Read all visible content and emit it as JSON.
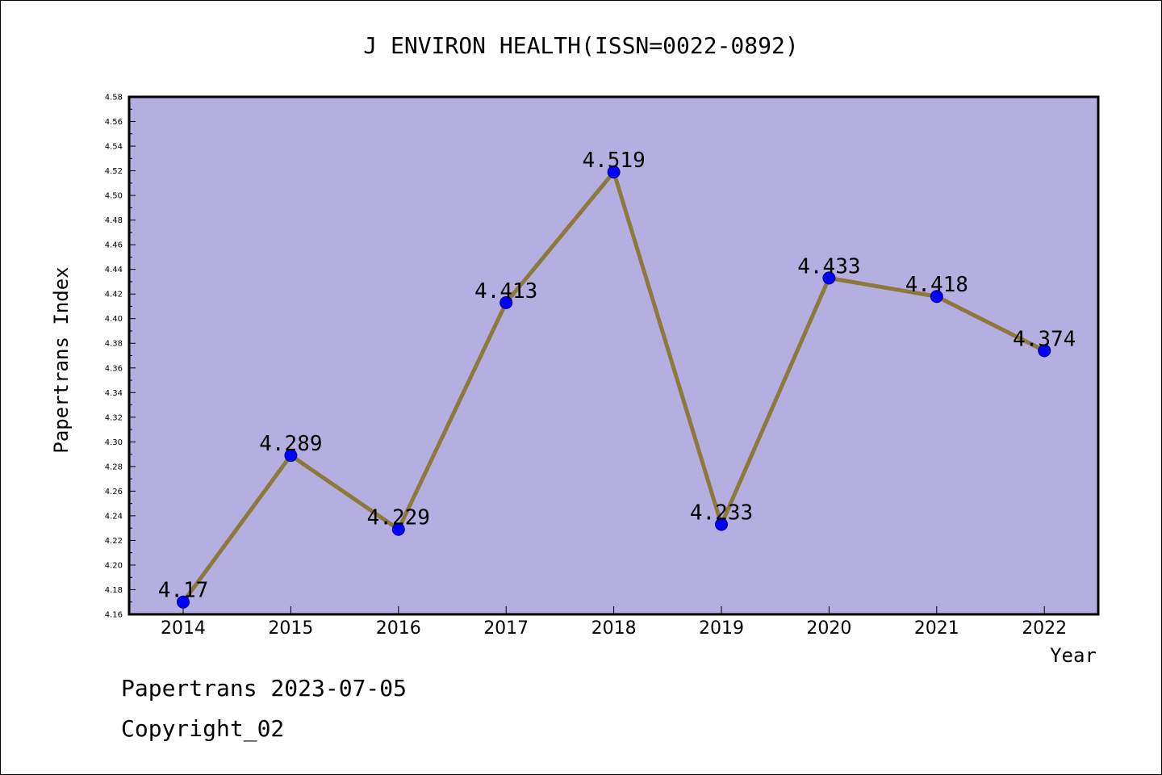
{
  "chart_data": {
    "type": "line",
    "title": "J ENVIRON HEALTH(ISSN=0022-0892)",
    "xlabel": "Year",
    "ylabel": "Papertrans Index",
    "categories": [
      "2014",
      "2015",
      "2016",
      "2017",
      "2018",
      "2019",
      "2020",
      "2021",
      "2022"
    ],
    "series": [
      {
        "values": [
          4.17,
          4.289,
          4.229,
          4.413,
          4.519,
          4.233,
          4.433,
          4.418,
          4.374
        ],
        "labels": [
          "4.17",
          "4.289",
          "4.229",
          "4.413",
          "4.519",
          "4.233",
          "4.433",
          "4.418",
          "4.374"
        ]
      }
    ],
    "ylim": [
      4.16,
      4.58
    ],
    "ytick_labels": [
      "4.16",
      "4.18",
      "4.20",
      "4.22",
      "4.24",
      "4.26",
      "4.28",
      "4.30",
      "4.32",
      "4.34",
      "4.36",
      "4.38",
      "4.40",
      "4.42",
      "4.44",
      "4.46",
      "4.48",
      "4.50",
      "4.52",
      "4.54",
      "4.56",
      "4.58"
    ],
    "grid": false,
    "colors": {
      "plot_background": "#b5afe1",
      "line": "#8c7a3c",
      "marker": "#0000ff"
    }
  },
  "footer": {
    "line1": "Papertrans 2023-07-05",
    "line2": "Copyright_02"
  }
}
